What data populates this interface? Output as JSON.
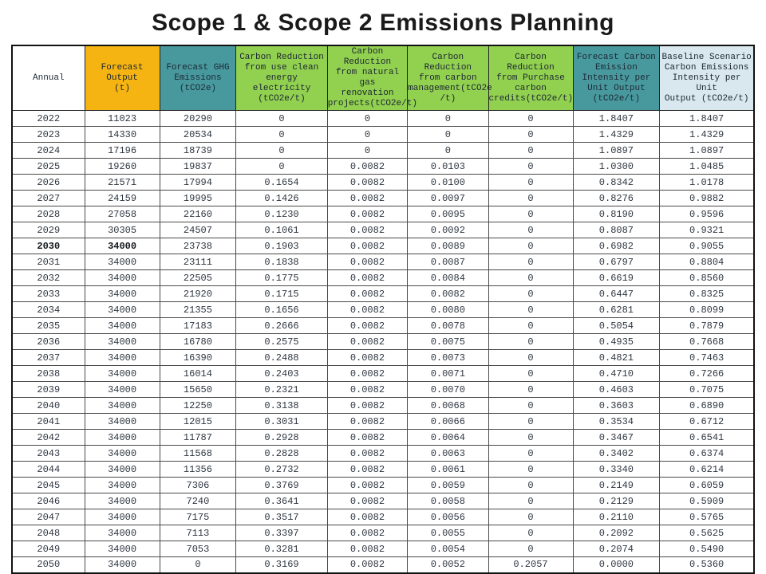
{
  "title": "Scope 1 & Scope 2 Emissions Planning",
  "colors": {
    "header_orange": "#f5b412",
    "header_teal": "#48999e",
    "header_green": "#92d050",
    "header_paleblue": "#d8e8ee",
    "grid_line": "#4a4a4a",
    "outer_border": "#111111"
  },
  "table": {
    "columns": [
      {
        "id": "annual",
        "label": "Annual",
        "bg": "white"
      },
      {
        "id": "forecast-output",
        "label": "Forecast Output\n(t)",
        "bg": "orange"
      },
      {
        "id": "forecast-ghg-emissions",
        "label": "Forecast GHG\nEmissions\n(tCO2e)",
        "bg": "teal"
      },
      {
        "id": "cr-clean-energy-electricity",
        "label": "Carbon Reduction\nfrom use clean\nenergy electricity\n(tCO2e/t)",
        "bg": "green"
      },
      {
        "id": "cr-natural-gas-renovation",
        "label": "Carbon Reduction\nfrom natural gas\nrenovation\nprojects(tCO2e/t)",
        "bg": "green"
      },
      {
        "id": "cr-carbon-management",
        "label": "Carbon Reduction\nfrom carbon\nmanagement(tCO2e\n/t)",
        "bg": "green"
      },
      {
        "id": "cr-purchase-carbon-credits",
        "label": "Carbon Reduction\nfrom Purchase\ncarbon\ncredits(tCO2e/t)",
        "bg": "green"
      },
      {
        "id": "forecast-carbon-intensity",
        "label": "Forecast Carbon\nEmission\nIntensity per\nUnit Output\n(tCO2e/t)",
        "bg": "teal"
      },
      {
        "id": "baseline-carbon-intensity",
        "label": "Baseline Scenario\nCarbon Emissions\nIntensity per Unit\nOutput (tCO2e/t)",
        "bg": "paleblue"
      }
    ],
    "rows": [
      {
        "cells": [
          "2022",
          "11023",
          "20290",
          "0",
          "0",
          "0",
          "0",
          "1.8407",
          "1.8407"
        ]
      },
      {
        "cells": [
          "2023",
          "14330",
          "20534",
          "0",
          "0",
          "0",
          "0",
          "1.4329",
          "1.4329"
        ]
      },
      {
        "cells": [
          "2024",
          "17196",
          "18739",
          "0",
          "0",
          "0",
          "0",
          "1.0897",
          "1.0897"
        ]
      },
      {
        "cells": [
          "2025",
          "19260",
          "19837",
          "0",
          "0.0082",
          "0.0103",
          "0",
          "1.0300",
          "1.0485"
        ]
      },
      {
        "cells": [
          "2026",
          "21571",
          "17994",
          "0.1654",
          "0.0082",
          "0.0100",
          "0",
          "0.8342",
          "1.0178"
        ]
      },
      {
        "cells": [
          "2027",
          "24159",
          "19995",
          "0.1426",
          "0.0082",
          "0.0097",
          "0",
          "0.8276",
          "0.9882"
        ]
      },
      {
        "cells": [
          "2028",
          "27058",
          "22160",
          "0.1230",
          "0.0082",
          "0.0095",
          "0",
          "0.8190",
          "0.9596"
        ]
      },
      {
        "cells": [
          "2029",
          "30305",
          "24507",
          "0.1061",
          "0.0082",
          "0.0092",
          "0",
          "0.8087",
          "0.9321"
        ]
      },
      {
        "cells": [
          "2030",
          "34000",
          "23738",
          "0.1903",
          "0.0082",
          "0.0089",
          "0",
          "0.6982",
          "0.9055"
        ],
        "bold_cells": [
          0,
          1
        ]
      },
      {
        "cells": [
          "2031",
          "34000",
          "23111",
          "0.1838",
          "0.0082",
          "0.0087",
          "0",
          "0.6797",
          "0.8804"
        ]
      },
      {
        "cells": [
          "2032",
          "34000",
          "22505",
          "0.1775",
          "0.0082",
          "0.0084",
          "0",
          "0.6619",
          "0.8560"
        ]
      },
      {
        "cells": [
          "2033",
          "34000",
          "21920",
          "0.1715",
          "0.0082",
          "0.0082",
          "0",
          "0.6447",
          "0.8325"
        ]
      },
      {
        "cells": [
          "2034",
          "34000",
          "21355",
          "0.1656",
          "0.0082",
          "0.0080",
          "0",
          "0.6281",
          "0.8099"
        ]
      },
      {
        "cells": [
          "2035",
          "34000",
          "17183",
          "0.2666",
          "0.0082",
          "0.0078",
          "0",
          "0.5054",
          "0.7879"
        ]
      },
      {
        "cells": [
          "2036",
          "34000",
          "16780",
          "0.2575",
          "0.0082",
          "0.0075",
          "0",
          "0.4935",
          "0.7668"
        ]
      },
      {
        "cells": [
          "2037",
          "34000",
          "16390",
          "0.2488",
          "0.0082",
          "0.0073",
          "0",
          "0.4821",
          "0.7463"
        ]
      },
      {
        "cells": [
          "2038",
          "34000",
          "16014",
          "0.2403",
          "0.0082",
          "0.0071",
          "0",
          "0.4710",
          "0.7266"
        ]
      },
      {
        "cells": [
          "2039",
          "34000",
          "15650",
          "0.2321",
          "0.0082",
          "0.0070",
          "0",
          "0.4603",
          "0.7075"
        ]
      },
      {
        "cells": [
          "2040",
          "34000",
          "12250",
          "0.3138",
          "0.0082",
          "0.0068",
          "0",
          "0.3603",
          "0.6890"
        ]
      },
      {
        "cells": [
          "2041",
          "34000",
          "12015",
          "0.3031",
          "0.0082",
          "0.0066",
          "0",
          "0.3534",
          "0.6712"
        ]
      },
      {
        "cells": [
          "2042",
          "34000",
          "11787",
          "0.2928",
          "0.0082",
          "0.0064",
          "0",
          "0.3467",
          "0.6541"
        ]
      },
      {
        "cells": [
          "2043",
          "34000",
          "11568",
          "0.2828",
          "0.0082",
          "0.0063",
          "0",
          "0.3402",
          "0.6374"
        ]
      },
      {
        "cells": [
          "2044",
          "34000",
          "11356",
          "0.2732",
          "0.0082",
          "0.0061",
          "0",
          "0.3340",
          "0.6214"
        ]
      },
      {
        "cells": [
          "2045",
          "34000",
          "7306",
          "0.3769",
          "0.0082",
          "0.0059",
          "0",
          "0.2149",
          "0.6059"
        ]
      },
      {
        "cells": [
          "2046",
          "34000",
          "7240",
          "0.3641",
          "0.0082",
          "0.0058",
          "0",
          "0.2129",
          "0.5909"
        ]
      },
      {
        "cells": [
          "2047",
          "34000",
          "7175",
          "0.3517",
          "0.0082",
          "0.0056",
          "0",
          "0.2110",
          "0.5765"
        ]
      },
      {
        "cells": [
          "2048",
          "34000",
          "7113",
          "0.3397",
          "0.0082",
          "0.0055",
          "0",
          "0.2092",
          "0.5625"
        ]
      },
      {
        "cells": [
          "2049",
          "34000",
          "7053",
          "0.3281",
          "0.0082",
          "0.0054",
          "0",
          "0.2074",
          "0.5490"
        ]
      },
      {
        "cells": [
          "2050",
          "34000",
          "0",
          "0.3169",
          "0.0082",
          "0.0052",
          "0.2057",
          "0.0000",
          "0.5360"
        ]
      }
    ]
  }
}
